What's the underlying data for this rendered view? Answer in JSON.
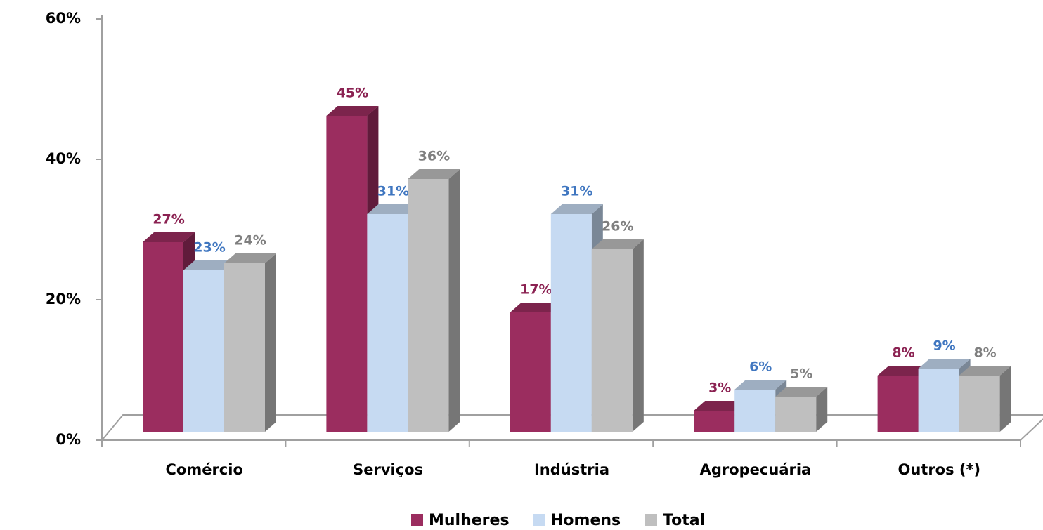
{
  "chart_data": {
    "type": "bar3d",
    "categories": [
      "Comércio",
      "Serviços",
      "Indústria",
      "Agropecuária",
      "Outros (*)"
    ],
    "series": [
      {
        "name": "Mulheres",
        "color": "#9b2d5f",
        "label_color": "#8b2252",
        "values": [
          27,
          45,
          17,
          3,
          8
        ],
        "value_labels": [
          "27%",
          "45%",
          "17%",
          "3%",
          "8%"
        ]
      },
      {
        "name": "Homens",
        "color": "#c6daf2",
        "label_color": "#3f76c0",
        "values": [
          23,
          31,
          31,
          6,
          9
        ],
        "value_labels": [
          "23%",
          "31%",
          "31%",
          "6%",
          "9%"
        ]
      },
      {
        "name": "Total",
        "color": "#bfbfbf",
        "label_color": "#7f7f7f",
        "values": [
          24,
          36,
          26,
          5,
          8
        ],
        "value_labels": [
          "24%",
          "36%",
          "26%",
          "5%",
          "8%"
        ]
      }
    ],
    "ylim": [
      0,
      60
    ],
    "yticks": [
      {
        "value": 0,
        "label": "0%"
      },
      {
        "value": 20,
        "label": "20%"
      },
      {
        "value": 40,
        "label": "40%"
      },
      {
        "value": 60,
        "label": "60%"
      }
    ],
    "legend": "bottom"
  }
}
